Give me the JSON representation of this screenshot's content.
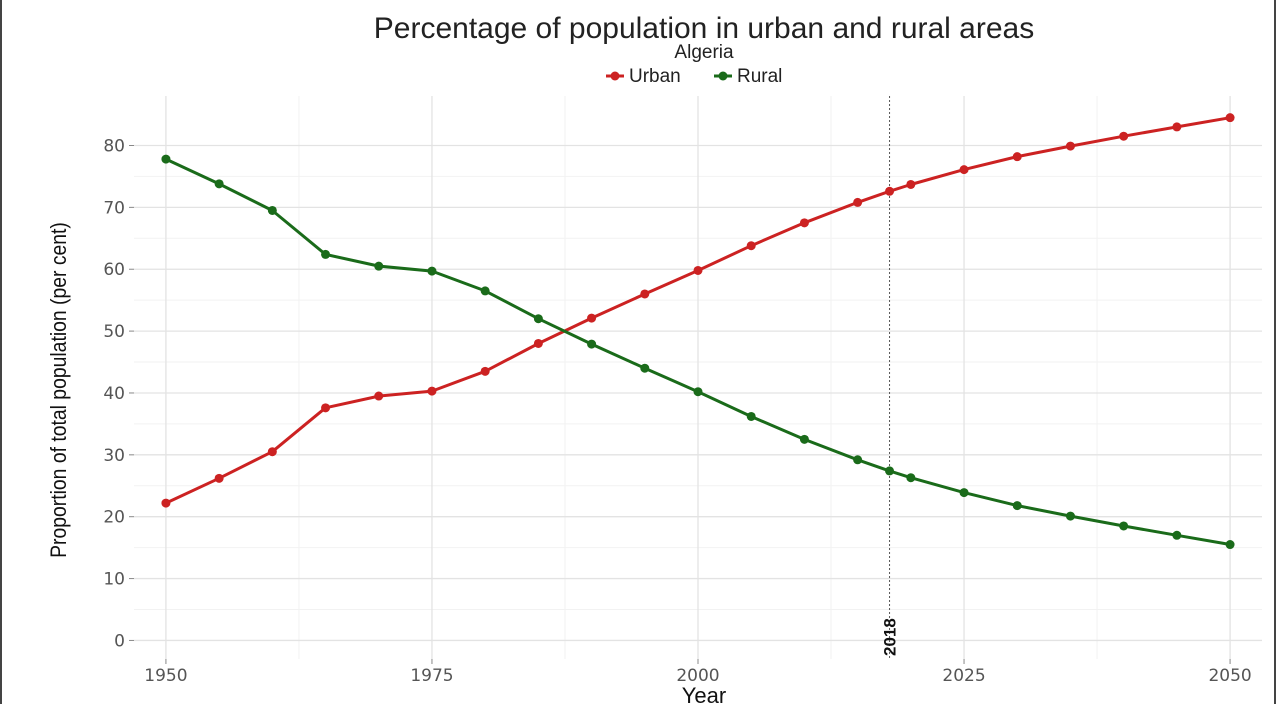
{
  "chart_data": {
    "type": "line",
    "title": "Percentage of population in urban and rural areas",
    "subtitle": "Algeria",
    "xlabel": "Year",
    "ylabel": "Proportion of total population (per cent)",
    "x": [
      1950,
      1955,
      1960,
      1965,
      1970,
      1975,
      1980,
      1985,
      1990,
      1995,
      2000,
      2005,
      2010,
      2015,
      2018,
      2020,
      2025,
      2030,
      2035,
      2040,
      2045,
      2050
    ],
    "series": [
      {
        "name": "Urban",
        "color": "#cc2222",
        "values": [
          22.2,
          26.2,
          30.5,
          37.6,
          39.5,
          40.3,
          43.5,
          48.0,
          52.1,
          56.0,
          59.8,
          63.8,
          67.5,
          70.8,
          72.6,
          73.7,
          76.1,
          78.2,
          79.9,
          81.5,
          83.0,
          84.5
        ]
      },
      {
        "name": "Rural",
        "color": "#1a6b1a",
        "values": [
          77.8,
          73.8,
          69.5,
          62.4,
          60.5,
          59.7,
          56.5,
          52.0,
          47.9,
          44.0,
          40.2,
          36.2,
          32.5,
          29.2,
          27.4,
          26.3,
          23.9,
          21.8,
          20.1,
          18.5,
          17.0,
          15.5
        ]
      }
    ],
    "xticks": [
      "1950",
      "1975",
      "2000",
      "2025",
      "2050"
    ],
    "yticks": [
      "0",
      "10",
      "20",
      "30",
      "40",
      "50",
      "60",
      "70",
      "80"
    ],
    "xlim": [
      1947,
      2053
    ],
    "ylim": [
      -3,
      88
    ],
    "reference_line": {
      "x": 2018,
      "label": "2018"
    },
    "legend_position": "top",
    "grid": true
  }
}
